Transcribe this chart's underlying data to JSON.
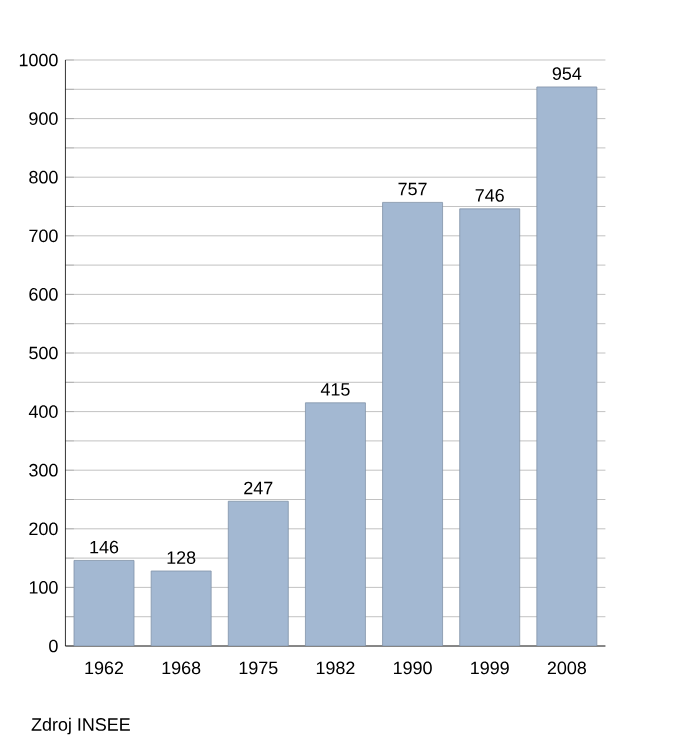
{
  "chart_data": {
    "type": "bar",
    "categories": [
      "1962",
      "1968",
      "1975",
      "1982",
      "1990",
      "1999",
      "2008"
    ],
    "values": [
      146,
      128,
      247,
      415,
      757,
      746,
      954
    ],
    "color": "#a3b8d2",
    "data_labels": true,
    "grid": "y",
    "ylim": [
      0,
      1000
    ],
    "yticks": [
      0,
      {
        "value": 50,
        "label": null
      },
      100,
      {
        "value": 150,
        "label": null
      },
      200,
      {
        "value": 250,
        "label": null
      },
      300,
      {
        "value": 350,
        "label": null
      },
      400,
      {
        "value": 450,
        "label": null
      },
      500,
      {
        "value": 550,
        "label": null
      },
      600,
      {
        "value": 650,
        "label": null
      },
      700,
      {
        "value": 750,
        "label": null
      },
      800,
      {
        "value": 850,
        "label": null
      },
      900,
      {
        "value": 950,
        "label": null
      },
      1000
    ],
    "annotations": [
      "Zdroj INSEE"
    ]
  }
}
